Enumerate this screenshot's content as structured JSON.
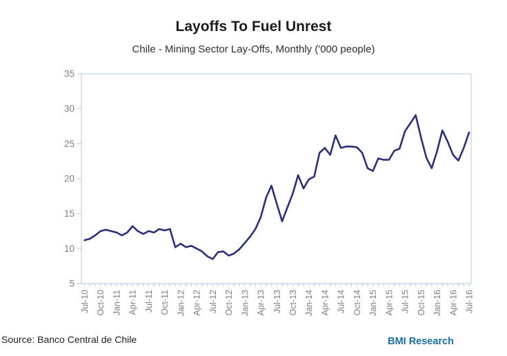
{
  "header": {
    "title": "Layoffs To Fuel Unrest",
    "subtitle": "Chile - Mining Sector Lay-Offs, Monthly ('000 people)"
  },
  "footer": {
    "source": "Source: Banco Central de Chile",
    "brand": "BMI Research"
  },
  "colors": {
    "line": "#292e7d",
    "axis": "#c3d4e4",
    "tick_labels": "#808080",
    "title": "#1c1c1c",
    "brand_blue": "#1a70a6"
  },
  "chart_data": {
    "type": "line",
    "title": "Layoffs To Fuel Unrest",
    "subtitle": "Chile - Mining Sector Lay-Offs, Monthly ('000 people)",
    "x_start_month": "Jul-10",
    "x_end_month": "Jul-16",
    "x_tick_labels": [
      "Jul-10",
      "Oct-10",
      "Jan-11",
      "Apr-11",
      "Jul-11",
      "Oct-11",
      "Jan-12",
      "Apr-12",
      "Jul-12",
      "Oct-12",
      "Jan-13",
      "Apr-13",
      "Jul-13",
      "Oct-13",
      "Jan-14",
      "Apr-14",
      "Jul-14",
      "Oct-14",
      "Jan-15",
      "Apr-15",
      "Jul-15",
      "Oct-15",
      "Jan-16",
      "Apr-16",
      "Jul-16"
    ],
    "x_label_every_n_months": 3,
    "values": [
      11.2,
      11.4,
      11.9,
      12.5,
      12.7,
      12.5,
      12.3,
      11.9,
      12.3,
      13.2,
      12.5,
      12.1,
      12.5,
      12.3,
      12.8,
      12.6,
      12.8,
      10.2,
      10.7,
      10.2,
      10.4,
      10.0,
      9.6,
      8.9,
      8.5,
      9.5,
      9.6,
      9.0,
      9.3,
      9.9,
      10.8,
      11.7,
      12.8,
      14.5,
      17.3,
      19.0,
      16.4,
      13.9,
      15.9,
      17.9,
      20.5,
      18.6,
      19.9,
      20.3,
      23.7,
      24.4,
      23.4,
      26.2,
      24.4,
      24.6,
      24.6,
      24.5,
      23.7,
      21.5,
      21.1,
      22.9,
      22.7,
      22.7,
      24.0,
      24.3,
      26.8,
      27.9,
      29.1,
      25.9,
      23.0,
      21.5,
      23.9,
      26.9,
      25.3,
      23.4,
      22.6,
      24.4,
      26.6
    ],
    "y_ticks": [
      5,
      10,
      15,
      20,
      25,
      30,
      35
    ],
    "ylim": [
      5,
      35
    ],
    "xlabel": "",
    "ylabel": "",
    "grid": false,
    "legend": false
  }
}
